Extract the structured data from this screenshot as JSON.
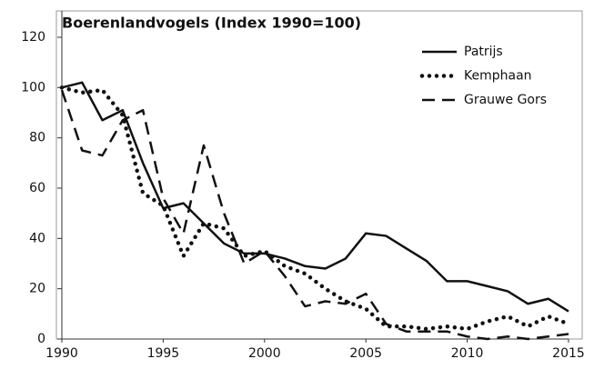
{
  "chart_data": {
    "type": "line",
    "title": "Boerenlandvogels (Index 1990=100)",
    "x": [
      1990,
      1991,
      1992,
      1993,
      1994,
      1995,
      1996,
      1997,
      1998,
      1999,
      2000,
      2001,
      2002,
      2003,
      2004,
      2005,
      2006,
      2007,
      2008,
      2009,
      2010,
      2011,
      2012,
      2013,
      2014,
      2015
    ],
    "series": [
      {
        "name": "Patrijs",
        "color": "#111111",
        "style": "solid",
        "values": [
          100,
          102,
          87,
          91,
          70,
          52,
          54,
          46,
          38,
          34,
          34,
          32,
          29,
          28,
          32,
          42,
          41,
          36,
          31,
          23,
          23,
          21,
          19,
          14,
          16,
          11
        ]
      },
      {
        "name": "Kemphaan",
        "color": "#111111",
        "style": "dotted",
        "values": [
          100,
          98,
          99,
          89,
          58,
          53,
          33,
          46,
          44,
          33,
          35,
          29,
          26,
          20,
          15,
          12,
          5,
          5,
          4,
          5,
          4,
          7,
          9,
          5,
          9,
          6
        ]
      },
      {
        "name": "Grauwe Gors",
        "color": "#111111",
        "style": "dashed",
        "values": [
          99,
          75,
          73,
          87,
          91,
          56,
          42,
          77,
          50,
          30,
          35,
          25,
          13,
          15,
          14,
          18,
          6,
          3,
          3,
          3,
          1,
          0,
          1,
          0,
          1,
          2
        ]
      }
    ],
    "xlim": [
      1990,
      2015
    ],
    "xticks": [
      1990,
      1995,
      2000,
      2005,
      2010,
      2015
    ],
    "ylim": [
      0,
      120
    ],
    "yticks": [
      0,
      20,
      40,
      60,
      80,
      100,
      120
    ],
    "legend": "top-right"
  }
}
